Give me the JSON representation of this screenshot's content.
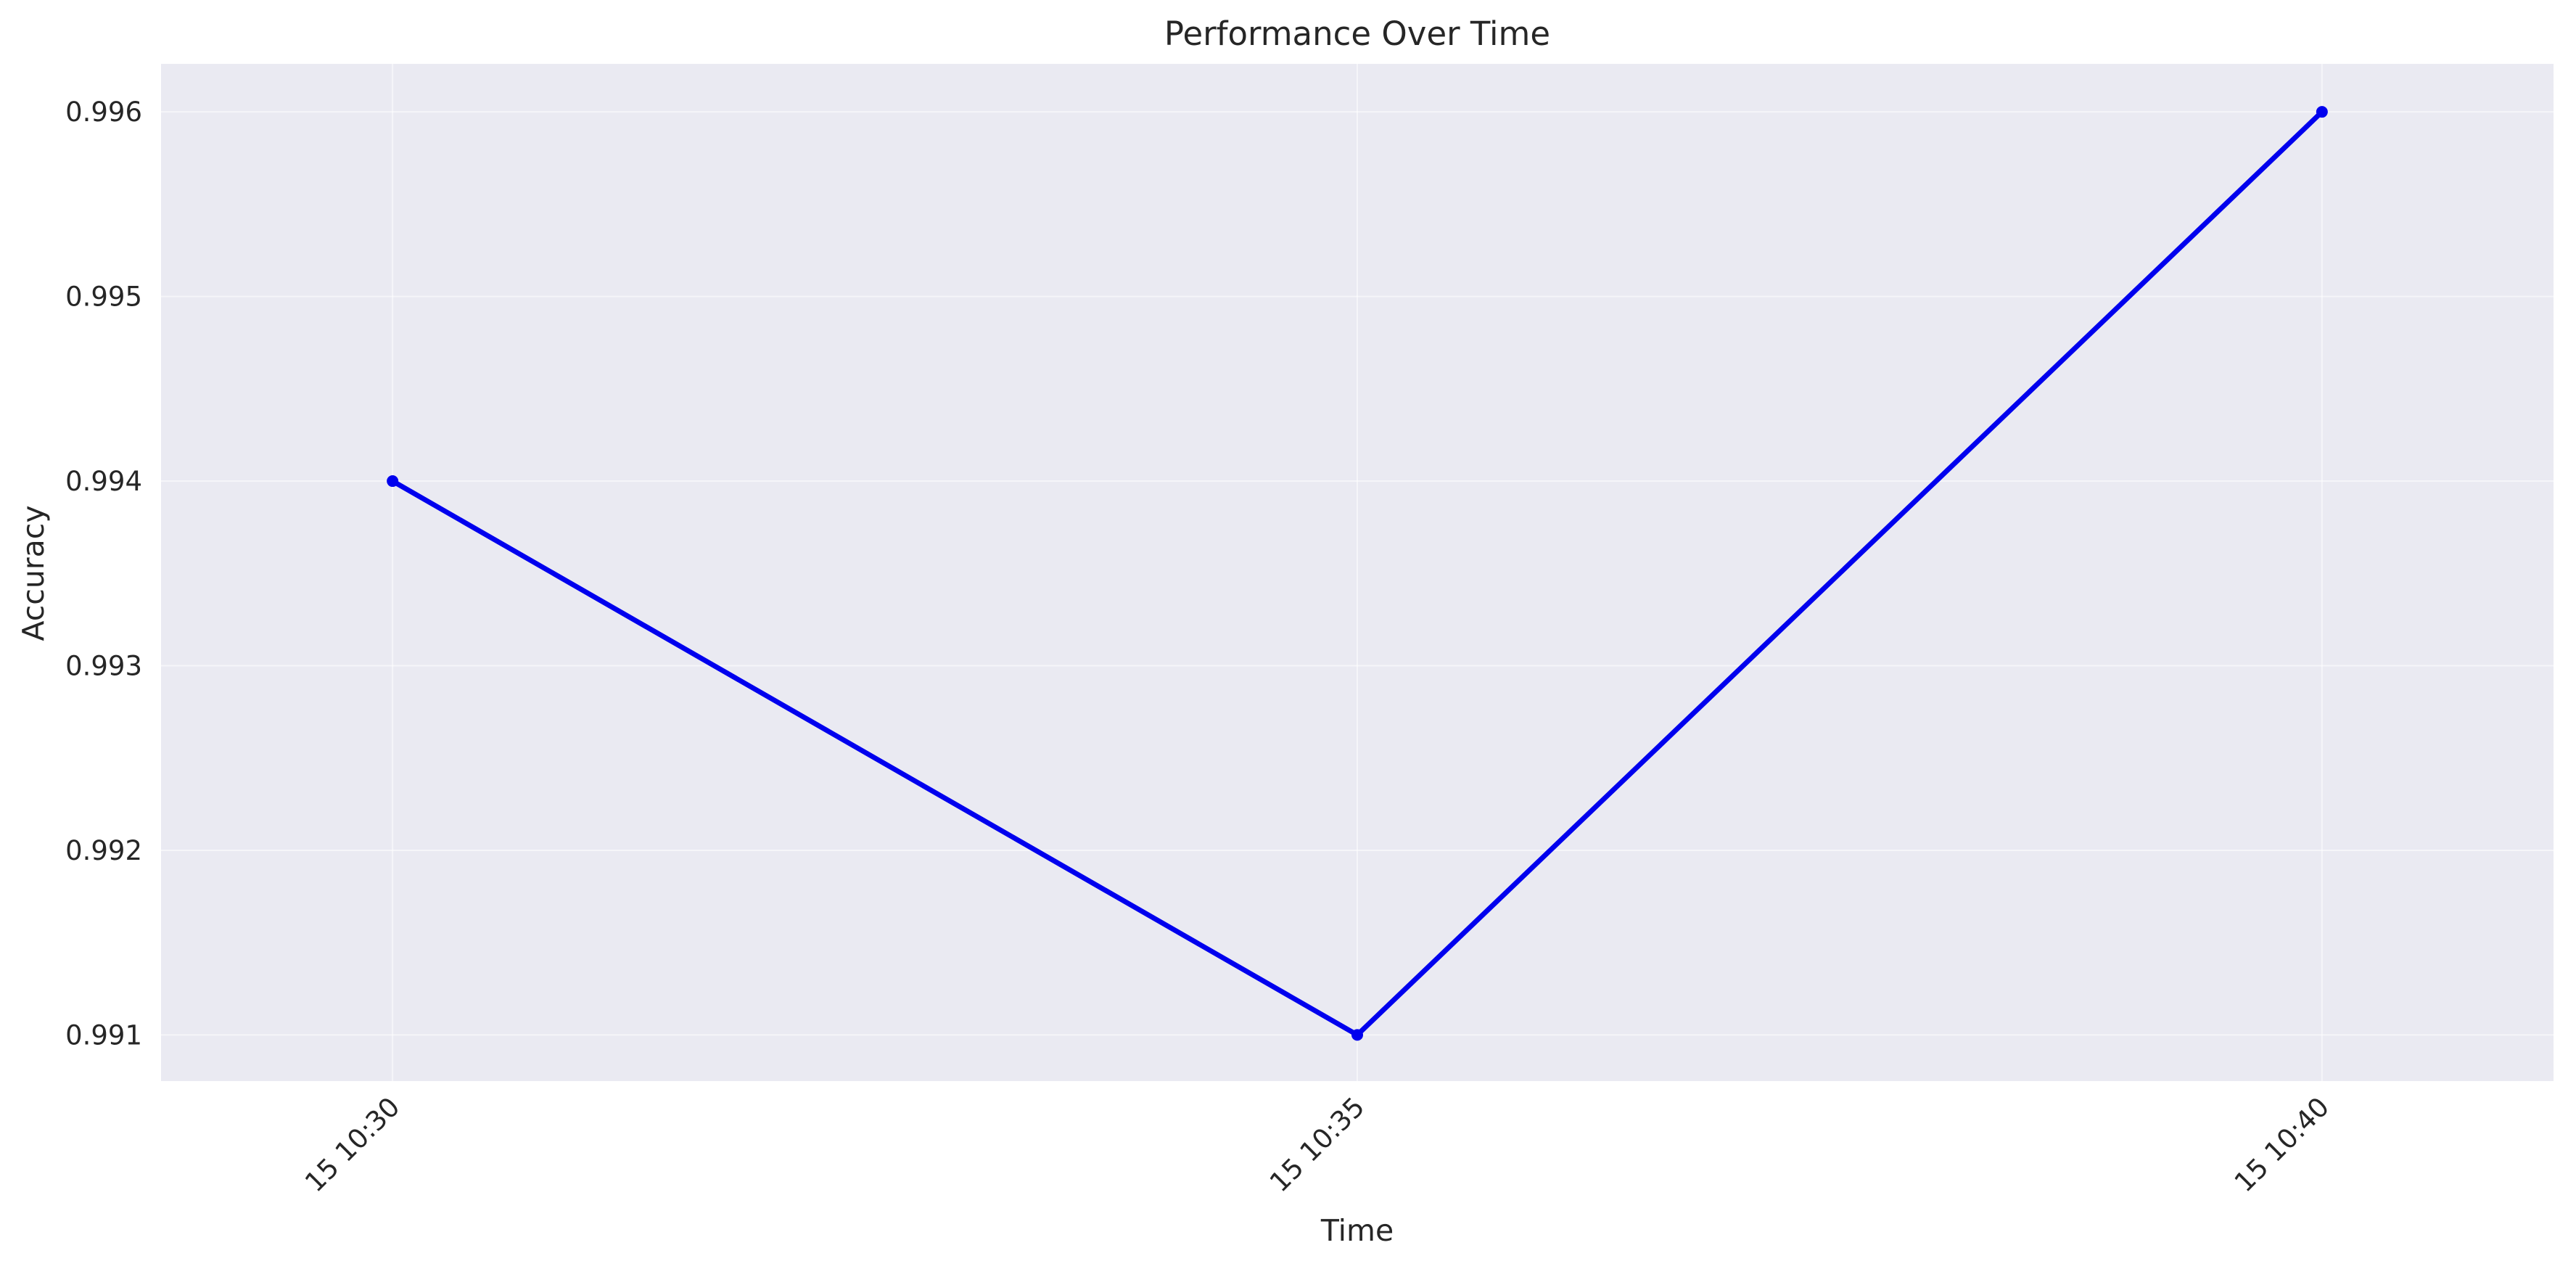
{
  "chart_data": {
    "type": "line",
    "title": "Performance Over Time",
    "xlabel": "Time",
    "ylabel": "Accuracy",
    "x": [
      "15 10:30",
      "15 10:35",
      "15 10:40"
    ],
    "series": [
      {
        "values": [
          0.994,
          0.991,
          0.996
        ],
        "color": "#0000ee",
        "marker": "circle"
      }
    ],
    "xlim": [
      "15 10:28.8",
      "15 10:41.2"
    ],
    "ylim": [
      0.99075,
      0.99626
    ],
    "yticks": [
      0.991,
      0.992,
      0.993,
      0.994,
      0.995,
      0.996
    ],
    "grid": true,
    "background_color": "#eaeaf2",
    "legend": false
  }
}
